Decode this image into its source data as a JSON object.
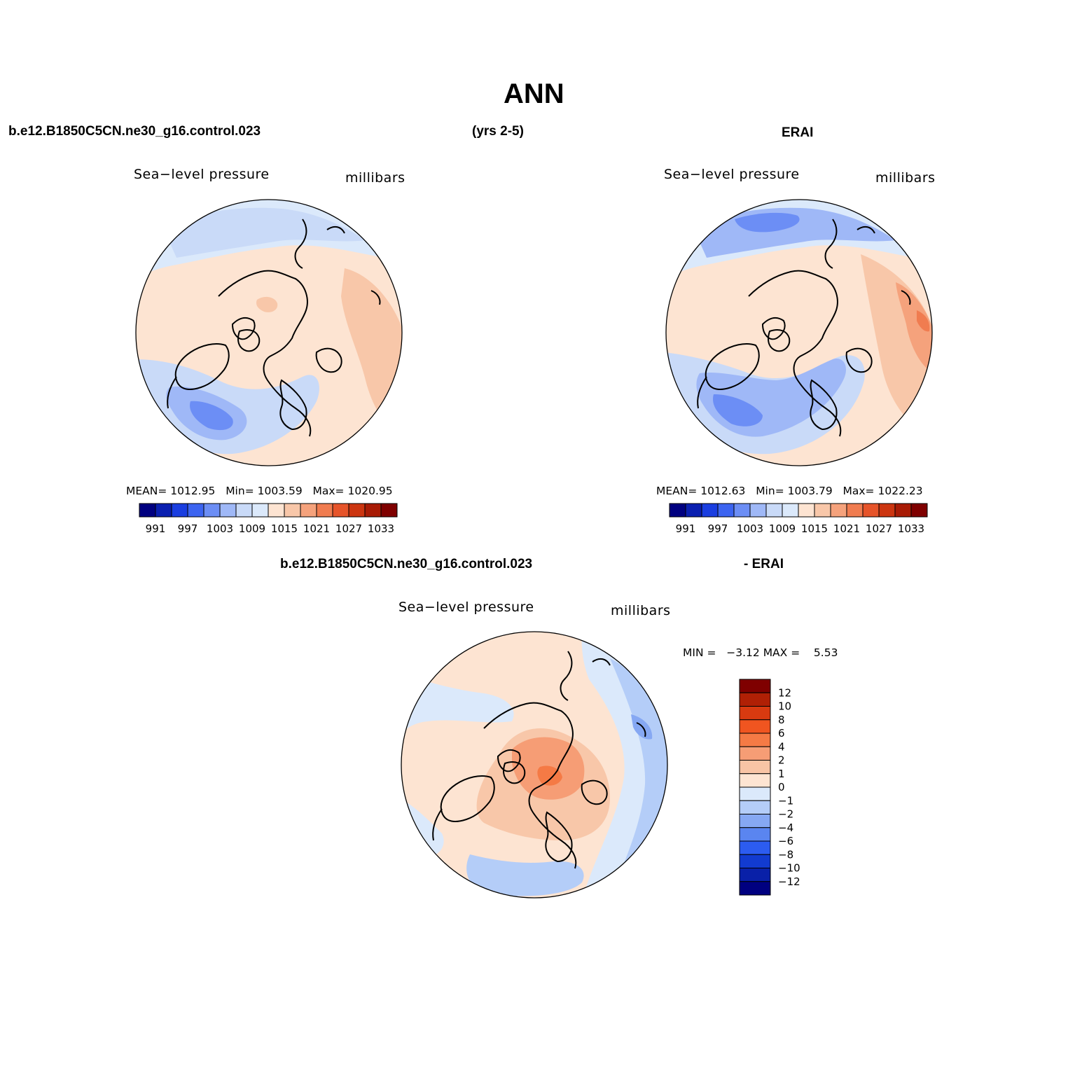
{
  "figure": {
    "title": "ANN",
    "case_name": "b.e12.B1850C5CN.ne30_g16.control.023",
    "years": "(yrs 2-5)",
    "obs_name": "ERAI"
  },
  "panels": {
    "model": {
      "variable": "Sea−level pressure",
      "units": "millibars",
      "mean_label": "MEAN=",
      "mean": "1012.95",
      "min_label": "Min=",
      "min": "1003.59",
      "max_label": "Max=",
      "max": "1020.95"
    },
    "obs": {
      "variable": "Sea−level pressure",
      "units": "millibars",
      "mean_label": "MEAN=",
      "mean": "1012.63",
      "min_label": "Min=",
      "min": "1003.79",
      "max_label": "Max=",
      "max": "1022.23"
    },
    "diff": {
      "case_name": "b.e12.B1850C5CN.ne30_g16.control.023",
      "obs_name": "- ERAI",
      "variable": "Sea−level pressure",
      "units": "millibars",
      "min_label": "MIN =",
      "min": "−3.12",
      "max_label": "MAX =",
      "max": "5.53"
    }
  },
  "chart_data": [
    {
      "type": "heatmap",
      "projection": "north-polar-stereographic",
      "title": "Sea−level pressure",
      "units": "millibars",
      "mean": 1012.95,
      "min": 1003.59,
      "max": 1020.95,
      "colorbar": {
        "orientation": "horizontal",
        "tick_labels": [
          "991",
          "997",
          "1003",
          "1009",
          "1015",
          "1021",
          "1027",
          "1033"
        ],
        "colors": [
          "#000080",
          "#0a1fb0",
          "#1a3ee0",
          "#3c64f0",
          "#6c8ef5",
          "#9fb8f7",
          "#c9daf8",
          "#dbe9fb",
          "#fde4d2",
          "#f8c7a9",
          "#f5a27c",
          "#f07c50",
          "#e6542a",
          "#cc3510",
          "#a81b05",
          "#7f0000"
        ]
      }
    },
    {
      "type": "heatmap",
      "projection": "north-polar-stereographic",
      "title": "Sea−level pressure",
      "units": "millibars",
      "mean": 1012.63,
      "min": 1003.79,
      "max": 1022.23,
      "colorbar": {
        "orientation": "horizontal",
        "tick_labels": [
          "991",
          "997",
          "1003",
          "1009",
          "1015",
          "1021",
          "1027",
          "1033"
        ],
        "colors": [
          "#000080",
          "#0a1fb0",
          "#1a3ee0",
          "#3c64f0",
          "#6c8ef5",
          "#9fb8f7",
          "#c9daf8",
          "#dbe9fb",
          "#fde4d2",
          "#f8c7a9",
          "#f5a27c",
          "#f07c50",
          "#e6542a",
          "#cc3510",
          "#a81b05",
          "#7f0000"
        ]
      }
    },
    {
      "type": "heatmap",
      "projection": "north-polar-stereographic",
      "title": "Sea−level pressure",
      "units": "millibars",
      "min": -3.12,
      "max": 5.53,
      "colorbar": {
        "orientation": "vertical",
        "tick_labels": [
          "12",
          "10",
          "8",
          "6",
          "4",
          "2",
          "1",
          "0",
          "−1",
          "−2",
          "−4",
          "−6",
          "−8",
          "−10",
          "−12"
        ],
        "colors": [
          "#7f0000",
          "#b02005",
          "#d83a10",
          "#f05520",
          "#f57a45",
          "#f69d75",
          "#f8c4a5",
          "#fde4d2",
          "#dbe9fb",
          "#b4cdf8",
          "#86a8f3",
          "#5a85f0",
          "#2c5cf0",
          "#123bd0",
          "#0920a8",
          "#000080"
        ]
      }
    }
  ]
}
